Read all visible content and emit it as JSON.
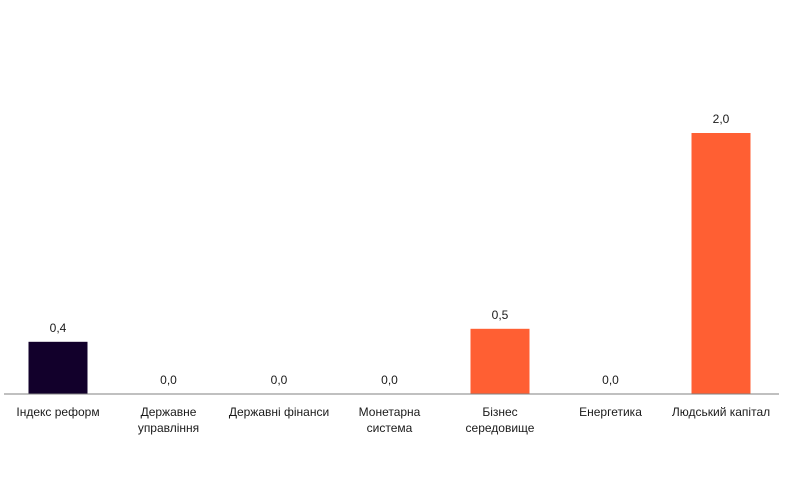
{
  "chart_data": {
    "type": "bar",
    "title": "",
    "xlabel": "",
    "ylabel": "",
    "ylim": [
      0,
      2.5
    ],
    "grid": false,
    "categories": [
      [
        "Індекс реформ"
      ],
      [
        "Державне",
        "управління"
      ],
      [
        "Державні фінанси"
      ],
      [
        "Монетарна",
        "система"
      ],
      [
        "Бізнес",
        "середовище"
      ],
      [
        "Енергетика"
      ],
      [
        "Людський капітал"
      ]
    ],
    "values": [
      0.4,
      0.0,
      0.0,
      0.0,
      0.5,
      0.0,
      2.0
    ],
    "value_labels": [
      "0,4",
      "0,0",
      "0,0",
      "0,0",
      "0,5",
      "0,0",
      "2,0"
    ],
    "colors": [
      "#12002b",
      "#ff5f33",
      "#ff5f33",
      "#ff5f33",
      "#ff5f33",
      "#ff5f33",
      "#ff5f33"
    ]
  }
}
